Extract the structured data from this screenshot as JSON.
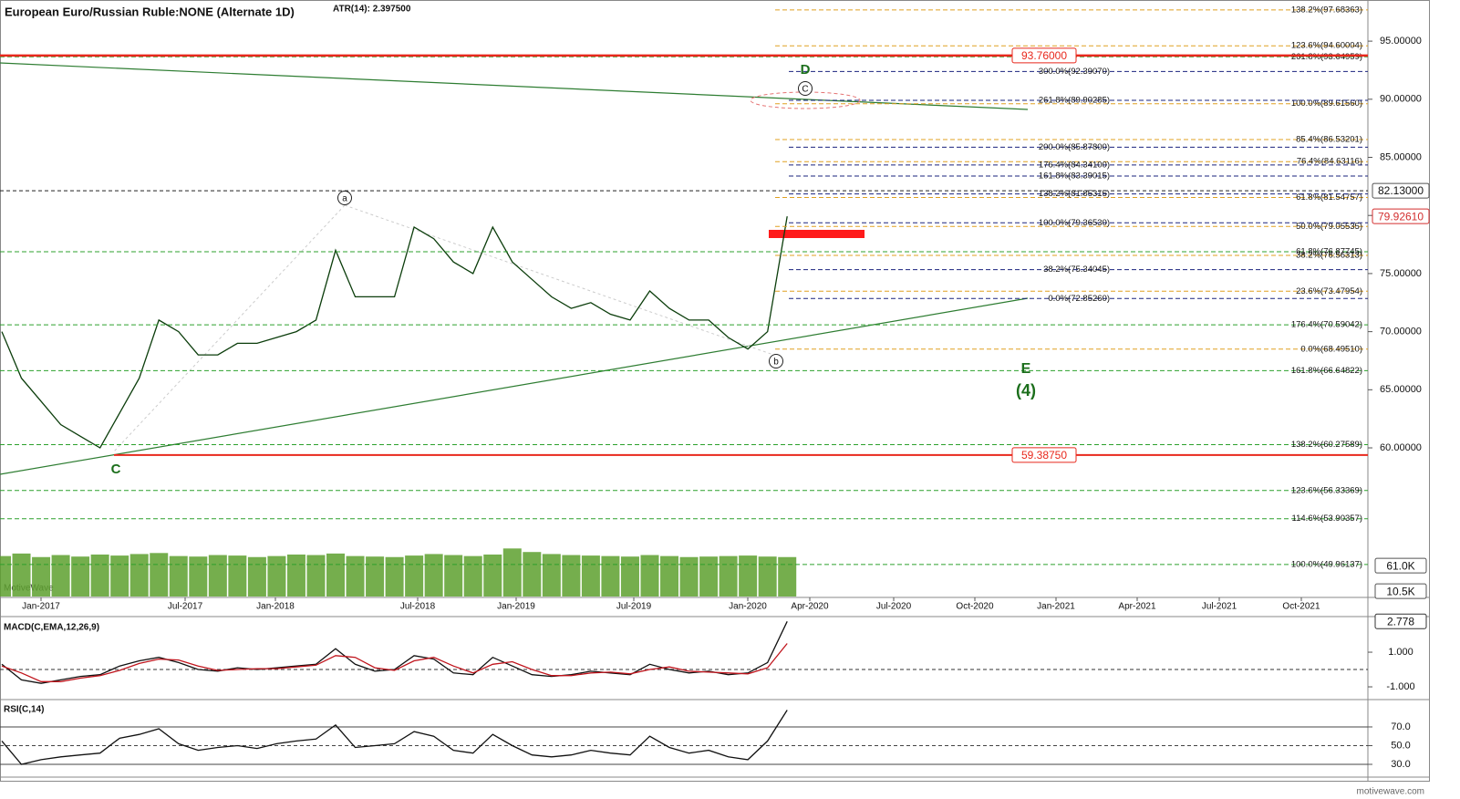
{
  "chart_data": [
    {
      "type": "line",
      "title": "European Euro/Russian Ruble:NONE (Alternate 1D)",
      "subtitle": "ATR(14): 2.397500",
      "watermark": "MotiveWave",
      "x": [
        "Nov-2016",
        "Dec-2016",
        "Jan-2017",
        "Feb-2017",
        "Mar-2017",
        "Apr-2017",
        "May-2017",
        "Jun-2017",
        "Jul-2017",
        "Aug-2017",
        "Sep-2017",
        "Oct-2017",
        "Nov-2017",
        "Dec-2017",
        "Jan-2018",
        "Feb-2018",
        "Mar-2018",
        "Apr-2018",
        "May-2018",
        "Jun-2018",
        "Jul-2018",
        "Aug-2018",
        "Sep-2018",
        "Oct-2018",
        "Nov-2018",
        "Dec-2018",
        "Jan-2019",
        "Feb-2019",
        "Mar-2019",
        "Apr-2019",
        "May-2019",
        "Jun-2019",
        "Jul-2019",
        "Aug-2019",
        "Sep-2019",
        "Oct-2019",
        "Nov-2019",
        "Dec-2019",
        "Jan-2020",
        "Feb-2020",
        "Mar-2020"
      ],
      "values": [
        70,
        66,
        64,
        62,
        61,
        60,
        63,
        66,
        71,
        70,
        68,
        68,
        69,
        69,
        69.5,
        70,
        71,
        77,
        73,
        73,
        73,
        79,
        78,
        76,
        75,
        79,
        76,
        74.5,
        73,
        72,
        72.5,
        71.5,
        71,
        73.5,
        72,
        71,
        71,
        69.5,
        68.5,
        70,
        79.9261
      ],
      "color": "#0b3d0b",
      "x_labels": [
        "Jan-2017",
        "Jul-2017",
        "Jan-2018",
        "Jul-2018",
        "Jan-2019",
        "Jul-2019",
        "Jan-2020",
        "Apr-2020",
        "Jul-2020",
        "Oct-2020",
        "Jan-2021",
        "Apr-2021",
        "Jul-2021",
        "Oct-2021"
      ],
      "ylim": [
        47.13,
        98.54
      ],
      "yticks": [
        {
          "value": 60,
          "label": "60.00000"
        },
        {
          "value": 65,
          "label": "65.00000"
        },
        {
          "value": 70,
          "label": "70.00000"
        },
        {
          "value": 75,
          "label": "75.00000"
        },
        {
          "value": 80,
          "label": "80.00000"
        },
        {
          "value": 85,
          "label": "85.00000"
        },
        {
          "value": 90,
          "label": "90.00000"
        },
        {
          "value": 95,
          "label": "95.00000"
        }
      ],
      "level_sets": [
        {
          "color": "#2ca02c",
          "levels": [
            {
              "value": 93.64959,
              "label": "261.8%(93.64959)"
            },
            {
              "value": 76.87745,
              "label": "61.8%(76.87745)"
            },
            {
              "value": 70.59042,
              "label": "176.4%(70.59042)"
            },
            {
              "value": 66.64822,
              "label": "161.8%(66.64822)"
            },
            {
              "value": 60.27589,
              "label": "138.2%(60.27589)"
            },
            {
              "value": 56.33369,
              "label": "123.6%(56.33369)"
            },
            {
              "value": 53.90357,
              "label": "114.6%(53.90357)"
            },
            {
              "value": 49.96137,
              "label": "100.0%(49.96137)"
            }
          ]
        },
        {
          "color": "#e0a020",
          "levels": [
            {
              "value": 97.68363,
              "label": "138.2%(97.68363)"
            },
            {
              "value": 94.60004,
              "label": "123.6%(94.60004)"
            },
            {
              "value": 89.6156,
              "label": "100.0%(89.61560)"
            },
            {
              "value": 86.53201,
              "label": "85.4%(86.53201)"
            },
            {
              "value": 84.63116,
              "label": "76.4%(84.63116)"
            },
            {
              "value": 81.54757,
              "label": "61.8%(81.54757)"
            },
            {
              "value": 79.05535,
              "label": "50.0%(79.05535)"
            },
            {
              "value": 76.56313,
              "label": "38.2%(76.56313)"
            },
            {
              "value": 73.47954,
              "label": "23.6%(73.47954)"
            },
            {
              "value": 68.4951,
              "label": "0.0%(68.49510)"
            }
          ]
        },
        {
          "color": "#1a237e",
          "levels": [
            {
              "value": 92.3907,
              "label": "300.0%(92.39070)"
            },
            {
              "value": 89.90285,
              "label": "261.8%(89.90285)"
            },
            {
              "value": 85.878,
              "label": "200.0%(85.87800)"
            },
            {
              "value": 84.341,
              "label": "176.4%(84.34100)"
            },
            {
              "value": 83.39015,
              "label": "161.8%(83.39015)"
            },
            {
              "value": 81.85315,
              "label": "138.2%(81.85315)"
            },
            {
              "value": 79.3653,
              "label": "100.0%(79.36530)"
            },
            {
              "value": 75.34045,
              "label": "38.2%(75.34045)"
            },
            {
              "value": 72.8526,
              "label": "0.0%(72.85260)"
            }
          ]
        }
      ],
      "resistance": {
        "value": 93.76,
        "label": "93.76000",
        "color": "#e8281c"
      },
      "support": {
        "value": 59.3875,
        "label": "59.38750",
        "color": "#e8281c"
      },
      "pivot": {
        "value": 82.13,
        "label": "82.13000"
      },
      "current": {
        "value": 79.9261,
        "label": "79.92610"
      },
      "wave_labels": [
        "D",
        "C",
        "a",
        "b",
        "C",
        "E",
        "(4)"
      ]
    },
    {
      "type": "bar",
      "x": [
        "Nov-2016",
        "Dec-2016",
        "Jan-2017",
        "Feb-2017",
        "Mar-2017",
        "Apr-2017",
        "May-2017",
        "Jun-2017",
        "Jul-2017",
        "Aug-2017",
        "Sep-2017",
        "Oct-2017",
        "Nov-2017",
        "Dec-2017",
        "Jan-2018",
        "Feb-2018",
        "Mar-2018",
        "Apr-2018",
        "May-2018",
        "Jun-2018",
        "Jul-2018",
        "Aug-2018",
        "Sep-2018",
        "Oct-2018",
        "Nov-2018",
        "Dec-2018",
        "Jan-2019",
        "Feb-2019",
        "Mar-2019",
        "Apr-2019",
        "May-2019",
        "Jun-2019",
        "Jul-2019",
        "Aug-2019",
        "Sep-2019",
        "Oct-2019",
        "Nov-2019",
        "Dec-2019",
        "Jan-2020",
        "Feb-2020",
        "Mar-2020"
      ],
      "values": [
        80000,
        85000,
        78000,
        82000,
        79000,
        83000,
        81000,
        84000,
        86000,
        80000,
        79000,
        82000,
        81000,
        78000,
        80000,
        83000,
        82000,
        85000,
        80000,
        79000,
        78000,
        81000,
        84000,
        82000,
        80000,
        83000,
        95000,
        88000,
        84000,
        82000,
        81000,
        80000,
        79000,
        82000,
        80000,
        78000,
        79000,
        80000,
        81000,
        79000,
        78000
      ],
      "color": "#5da02e",
      "ylim": [
        0,
        151500
      ],
      "yticks": [
        {
          "value": 61000,
          "label": "61.0K"
        },
        {
          "value": 10500,
          "label": "10.5K"
        }
      ]
    },
    {
      "type": "line",
      "title": "MACD(C,EMA,12,26,9)",
      "x": [
        "Nov-2016",
        "Dec-2016",
        "Jan-2017",
        "Feb-2017",
        "Mar-2017",
        "Apr-2017",
        "May-2017",
        "Jun-2017",
        "Jul-2017",
        "Aug-2017",
        "Sep-2017",
        "Oct-2017",
        "Nov-2017",
        "Dec-2017",
        "Jan-2018",
        "Feb-2018",
        "Mar-2018",
        "Apr-2018",
        "May-2018",
        "Jun-2018",
        "Jul-2018",
        "Aug-2018",
        "Sep-2018",
        "Oct-2018",
        "Nov-2018",
        "Dec-2018",
        "Jan-2019",
        "Feb-2019",
        "Mar-2019",
        "Apr-2019",
        "May-2019",
        "Jun-2019",
        "Jul-2019",
        "Aug-2019",
        "Sep-2019",
        "Oct-2019",
        "Nov-2019",
        "Dec-2019",
        "Jan-2020",
        "Feb-2020",
        "Mar-2020"
      ],
      "series": [
        {
          "color": "#111111",
          "values": [
            0.3,
            -0.6,
            -0.8,
            -0.6,
            -0.4,
            -0.3,
            0.2,
            0.5,
            0.7,
            0.4,
            0,
            -0.1,
            0.1,
            0,
            0.1,
            0.2,
            0.3,
            1.2,
            0.3,
            -0.1,
            0,
            0.8,
            0.6,
            -0.2,
            -0.3,
            0.7,
            0.2,
            -0.3,
            -0.4,
            -0.3,
            -0.1,
            -0.2,
            -0.3,
            0.3,
            0,
            -0.2,
            -0.1,
            -0.3,
            -0.2,
            0.4,
            2.778
          ]
        },
        {
          "color": "#c0141c",
          "values": [
            0.2,
            -0.2,
            -0.7,
            -0.7,
            -0.5,
            -0.35,
            -0.05,
            0.35,
            0.6,
            0.55,
            0.2,
            -0.05,
            0,
            0.05,
            0.05,
            0.15,
            0.25,
            0.8,
            0.7,
            0.1,
            -0.05,
            0.5,
            0.7,
            0.2,
            -0.2,
            0.3,
            0.45,
            0,
            -0.35,
            -0.35,
            -0.2,
            -0.15,
            -0.25,
            0,
            0.15,
            -0.1,
            -0.15,
            -0.2,
            -0.25,
            0.1,
            1.5
          ]
        }
      ],
      "ylim": [
        -1.63,
        2.95
      ],
      "yticks": [
        {
          "value": 1,
          "label": "1.000"
        },
        {
          "value": -1,
          "label": "-1.000"
        }
      ],
      "current": {
        "value": 2.778,
        "label": "2.778"
      }
    },
    {
      "type": "line",
      "title": "RSI(C,14)",
      "x": [
        "Nov-2016",
        "Dec-2016",
        "Jan-2017",
        "Feb-2017",
        "Mar-2017",
        "Apr-2017",
        "May-2017",
        "Jun-2017",
        "Jul-2017",
        "Aug-2017",
        "Sep-2017",
        "Oct-2017",
        "Nov-2017",
        "Dec-2017",
        "Jan-2018",
        "Feb-2018",
        "Mar-2018",
        "Apr-2018",
        "May-2018",
        "Jun-2018",
        "Jul-2018",
        "Aug-2018",
        "Sep-2018",
        "Oct-2018",
        "Nov-2018",
        "Dec-2018",
        "Jan-2019",
        "Feb-2019",
        "Mar-2019",
        "Apr-2019",
        "May-2019",
        "Jun-2019",
        "Jul-2019",
        "Aug-2019",
        "Sep-2019",
        "Oct-2019",
        "Nov-2019",
        "Dec-2019",
        "Jan-2020",
        "Feb-2020",
        "Mar-2020"
      ],
      "values": [
        55,
        30,
        35,
        38,
        40,
        42,
        58,
        62,
        68,
        52,
        45,
        48,
        50,
        47,
        52,
        55,
        57,
        72,
        48,
        50,
        52,
        65,
        60,
        45,
        42,
        62,
        50,
        40,
        38,
        40,
        45,
        42,
        40,
        60,
        48,
        42,
        45,
        38,
        35,
        55,
        88
      ],
      "color": "#111111",
      "ylim": [
        18.3,
        96.3
      ],
      "yticks": [
        {
          "value": 70,
          "label": "70.0"
        },
        {
          "value": 50,
          "label": "50.0"
        },
        {
          "value": 30,
          "label": "30.0"
        }
      ]
    }
  ],
  "footer": "motivewave.com"
}
